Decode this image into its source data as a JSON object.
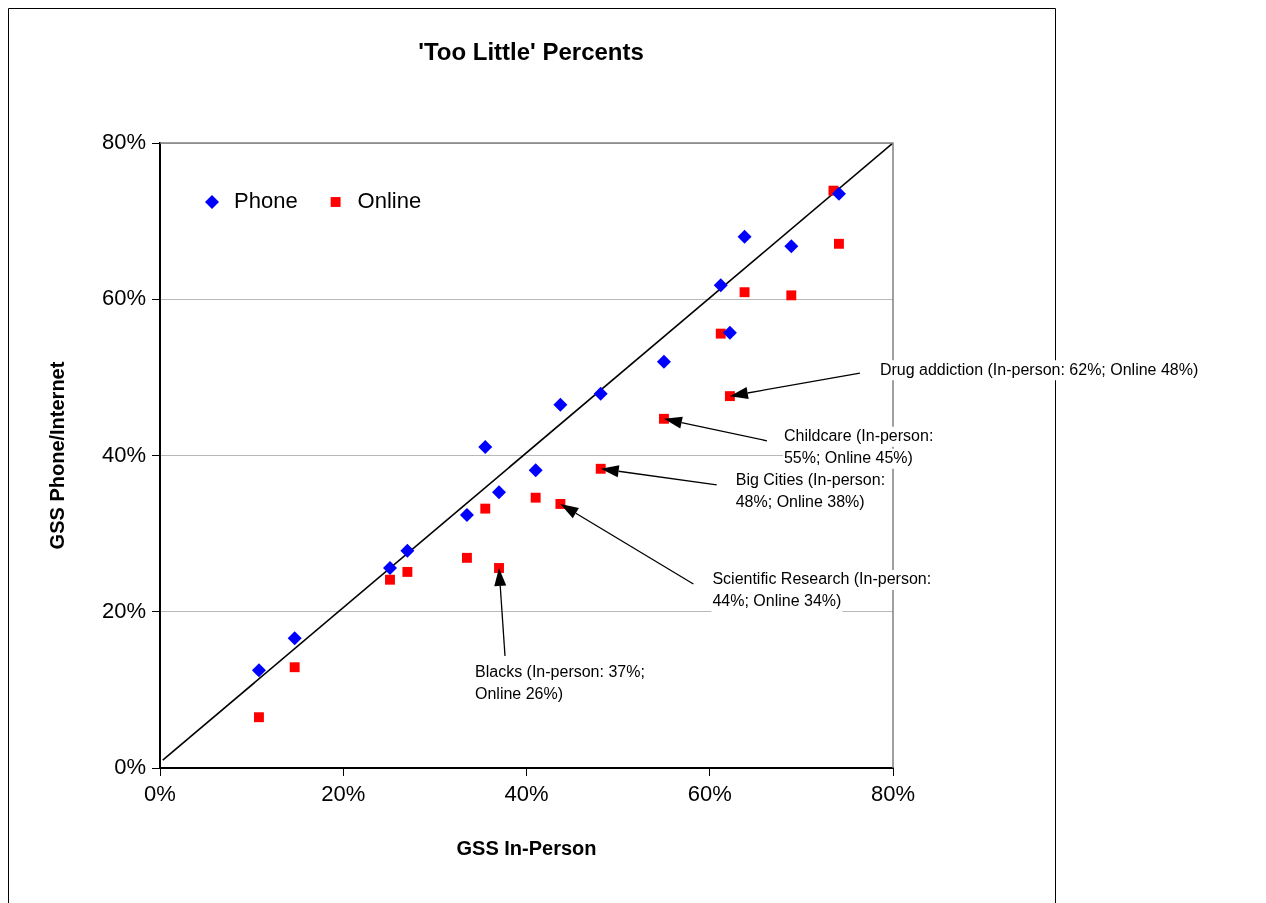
{
  "chart_data": {
    "type": "scatter",
    "title": "'Too Little' Percents",
    "xlabel": "GSS In-Person",
    "ylabel": "GSS Phone/Internet",
    "xlim": [
      0,
      80
    ],
    "xticks": [
      {
        "value": 0,
        "label": "0%"
      },
      {
        "value": 20,
        "label": "20%"
      },
      {
        "value": 40,
        "label": "40%"
      },
      {
        "value": 60,
        "label": "60%"
      },
      {
        "value": 80,
        "label": "80%"
      }
    ],
    "ylim": [
      0,
      80
    ],
    "yticks": [
      {
        "value": 0,
        "label": "0%"
      },
      {
        "value": 20,
        "label": "20%"
      },
      {
        "value": 40,
        "label": "40%"
      },
      {
        "value": 60,
        "label": "60%"
      },
      {
        "value": 80,
        "label": "80%"
      }
    ],
    "grid": "y",
    "legend": "top left",
    "series": [
      {
        "name": "Phone",
        "color": "#0000ff",
        "marker": "diamond",
        "x": [
          10.8,
          14.7,
          25.1,
          27.0,
          33.5,
          35.5,
          37.0,
          41.0,
          43.7,
          48.1,
          55.0,
          61.2,
          62.2,
          63.8,
          68.9,
          74.1
        ],
        "values": [
          12.5,
          16.6,
          25.6,
          27.8,
          32.4,
          41.1,
          35.3,
          38.1,
          46.5,
          47.9,
          52.0,
          61.8,
          55.7,
          68.0,
          66.8,
          73.5
        ]
      },
      {
        "name": "Online",
        "color": "#ff0000",
        "marker": "square",
        "x": [
          10.8,
          14.7,
          25.1,
          27.0,
          33.5,
          35.5,
          37.0,
          41.0,
          43.7,
          48.1,
          55.0,
          61.2,
          62.2,
          63.8,
          68.9,
          73.5,
          74.1
        ],
        "values": [
          6.5,
          12.9,
          24.1,
          25.1,
          26.9,
          33.2,
          25.6,
          34.6,
          33.8,
          38.3,
          44.7,
          55.6,
          47.6,
          60.9,
          60.5,
          73.9,
          67.1
        ]
      },
      {
        "type": "line",
        "color": "#000000",
        "marker": "none",
        "x": [
          0.3,
          80
        ],
        "values": [
          1,
          80
        ]
      }
    ],
    "annotations": [
      "Drug addiction (In-person: 62%; Online 48%)",
      "Childcare (In-person: 55%; Online 45%)",
      "Big Cities (In-person: 48%; Online 38%)",
      "Scientific Research (In-person: 44%; Online 34%)",
      "Blacks (In-person: 37%; Online 26%)"
    ]
  }
}
